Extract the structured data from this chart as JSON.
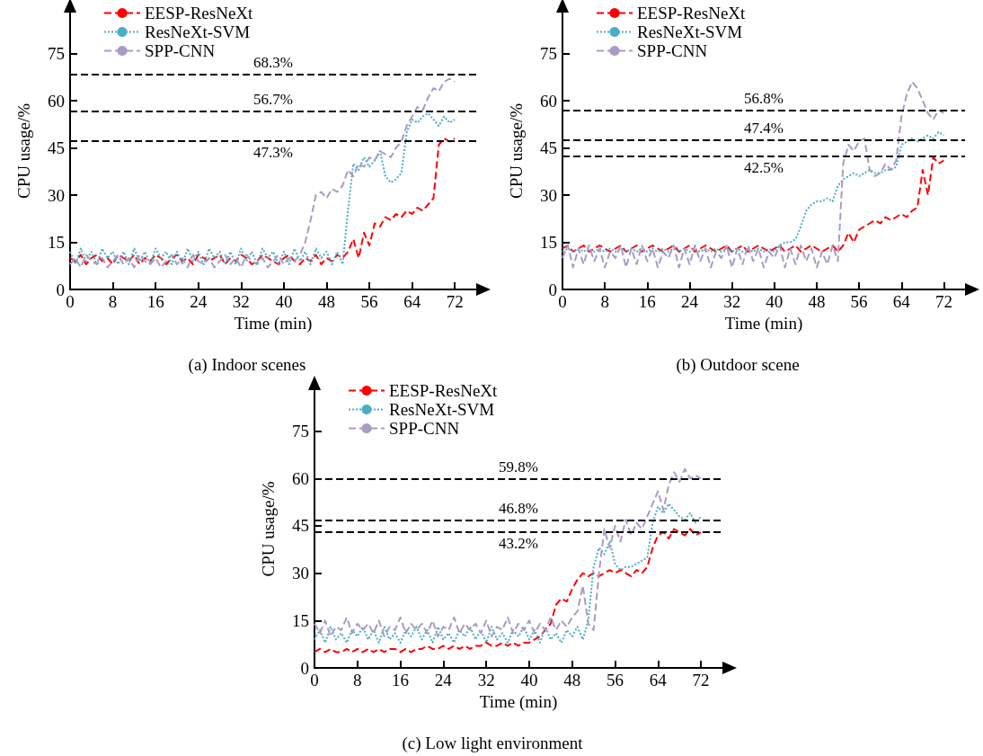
{
  "chart_data": [
    {
      "type": "line",
      "title": "(a) Indoor scenes",
      "x": [
        0,
        1,
        2,
        3,
        4,
        5,
        6,
        7,
        8,
        9,
        10,
        11,
        12,
        13,
        14,
        15,
        16,
        17,
        18,
        19,
        20,
        21,
        22,
        23,
        24,
        25,
        26,
        27,
        28,
        29,
        30,
        31,
        32,
        33,
        34,
        35,
        36,
        37,
        38,
        39,
        40,
        41,
        42,
        43,
        44,
        45,
        46,
        47,
        48,
        49,
        50,
        51,
        52,
        53,
        54,
        55,
        56,
        57,
        58,
        59,
        60,
        61,
        62,
        63,
        64,
        65,
        66,
        67,
        68,
        69,
        70,
        71,
        72
      ],
      "xlabel": "Time (min)",
      "ylabel": "CPU usage/%",
      "xlim": [
        0,
        76
      ],
      "ylim": [
        0,
        88
      ],
      "xticks": [
        0,
        8,
        16,
        24,
        32,
        40,
        48,
        56,
        64,
        72
      ],
      "yticks": [
        0,
        15,
        30,
        45,
        60,
        75
      ],
      "grid": false,
      "legend": "top left",
      "marker": "none",
      "series": [
        {
          "name": "EESP-ResNeXt",
          "color": "#ff0000",
          "line_style": "dashed",
          "values": [
            10,
            9,
            11,
            8,
            10,
            11,
            9,
            10,
            8,
            11,
            10,
            9,
            11,
            8,
            10,
            9,
            11,
            10,
            8,
            10,
            11,
            9,
            10,
            8,
            11,
            10,
            9,
            10,
            11,
            8,
            10,
            9,
            11,
            10,
            8,
            9,
            11,
            10,
            9,
            8,
            10,
            11,
            9,
            8,
            10,
            9,
            11,
            8,
            10,
            9,
            11,
            10,
            12,
            16,
            10,
            18,
            14,
            21,
            20,
            23,
            22,
            24,
            23,
            25,
            24,
            26,
            25,
            27,
            29,
            46,
            48,
            47,
            48
          ]
        },
        {
          "name": "ResNeXt-SVM",
          "color": "#4bacc6",
          "line_style": "dotted",
          "values": [
            12,
            8,
            13,
            9,
            12,
            8,
            13,
            10,
            12,
            8,
            12,
            8,
            13,
            9,
            12,
            8,
            13,
            10,
            12,
            8,
            12,
            8,
            13,
            9,
            12,
            8,
            13,
            10,
            12,
            8,
            12,
            8,
            13,
            9,
            12,
            8,
            13,
            10,
            12,
            8,
            12,
            8,
            13,
            9,
            12,
            8,
            13,
            10,
            12,
            8,
            12,
            8,
            25,
            40,
            38,
            42,
            39,
            41,
            44,
            36,
            34,
            35,
            37,
            50,
            54,
            53,
            55,
            56,
            54,
            52,
            55,
            53,
            54
          ]
        },
        {
          "name": "SPP-CNN",
          "color": "#a99bc4",
          "line_style": "dashed",
          "values": [
            8,
            10,
            7,
            11,
            9,
            8,
            10,
            7,
            9,
            11,
            8,
            10,
            7,
            11,
            9,
            8,
            10,
            7,
            9,
            11,
            8,
            10,
            7,
            11,
            9,
            8,
            10,
            7,
            9,
            11,
            8,
            10,
            7,
            11,
            9,
            8,
            10,
            7,
            9,
            11,
            8,
            10,
            9,
            11,
            15,
            22,
            30,
            31,
            29,
            32,
            31,
            33,
            38,
            36,
            40,
            39,
            42,
            41,
            44,
            43,
            42,
            45,
            47,
            52,
            55,
            58,
            57,
            61,
            64,
            63,
            66,
            67,
            66
          ]
        }
      ],
      "ref_lines": [
        {
          "axis": "y",
          "value": 68.3,
          "label": "68.3%"
        },
        {
          "axis": "y",
          "value": 56.7,
          "label": "56.7%"
        },
        {
          "axis": "y",
          "value": 47.3,
          "label": "47.3%"
        }
      ]
    },
    {
      "type": "line",
      "title": "(b) Outdoor scene",
      "x": [
        0,
        1,
        2,
        3,
        4,
        5,
        6,
        7,
        8,
        9,
        10,
        11,
        12,
        13,
        14,
        15,
        16,
        17,
        18,
        19,
        20,
        21,
        22,
        23,
        24,
        25,
        26,
        27,
        28,
        29,
        30,
        31,
        32,
        33,
        34,
        35,
        36,
        37,
        38,
        39,
        40,
        41,
        42,
        43,
        44,
        45,
        46,
        47,
        48,
        49,
        50,
        51,
        52,
        53,
        54,
        55,
        56,
        57,
        58,
        59,
        60,
        61,
        62,
        63,
        64,
        65,
        66,
        67,
        68,
        69,
        70,
        71,
        72
      ],
      "xlabel": "Time (min)",
      "ylabel": "CPU usage/%",
      "xlim": [
        0,
        76
      ],
      "ylim": [
        0,
        88
      ],
      "xticks": [
        0,
        8,
        16,
        24,
        32,
        40,
        48,
        56,
        64,
        72
      ],
      "yticks": [
        0,
        15,
        30,
        45,
        60,
        75
      ],
      "grid": false,
      "legend": "top left",
      "marker": "none",
      "series": [
        {
          "name": "EESP-ResNeXt",
          "color": "#ff0000",
          "line_style": "dashed",
          "values": [
            13,
            14,
            12,
            13,
            14,
            12,
            13,
            14,
            13,
            12,
            13,
            14,
            12,
            13,
            14,
            12,
            13,
            14,
            13,
            12,
            13,
            14,
            12,
            13,
            14,
            12,
            13,
            14,
            13,
            12,
            13,
            14,
            12,
            13,
            14,
            12,
            13,
            14,
            13,
            12,
            13,
            14,
            12,
            13,
            14,
            12,
            13,
            14,
            13,
            12,
            13,
            14,
            12,
            14,
            18,
            15,
            19,
            20,
            21,
            22,
            21,
            23,
            22,
            23,
            24,
            23,
            25,
            26,
            38,
            30,
            42,
            40,
            41
          ]
        },
        {
          "name": "ResNeXt-SVM",
          "color": "#4bacc6",
          "line_style": "dotted",
          "values": [
            12,
            13,
            12,
            13,
            12,
            13,
            12,
            13,
            12,
            13,
            12,
            13,
            12,
            13,
            12,
            13,
            12,
            13,
            12,
            13,
            12,
            13,
            12,
            13,
            12,
            13,
            12,
            13,
            12,
            13,
            12,
            13,
            12,
            13,
            12,
            13,
            12,
            13,
            12,
            13,
            12,
            14,
            15,
            15,
            16,
            20,
            25,
            27,
            28,
            28,
            29,
            28,
            33,
            35,
            36,
            37,
            36,
            37,
            38,
            37,
            37,
            38,
            38,
            39,
            46,
            47,
            48,
            47,
            48,
            49,
            48,
            50,
            49
          ]
        },
        {
          "name": "SPP-CNN",
          "color": "#a99bc4",
          "line_style": "dashed",
          "values": [
            10,
            14,
            7,
            13,
            8,
            14,
            9,
            13,
            7,
            12,
            10,
            14,
            7,
            13,
            8,
            14,
            9,
            13,
            7,
            12,
            10,
            14,
            7,
            13,
            8,
            14,
            9,
            13,
            7,
            12,
            10,
            14,
            7,
            13,
            8,
            14,
            9,
            13,
            7,
            12,
            10,
            14,
            7,
            13,
            8,
            14,
            9,
            13,
            7,
            12,
            8,
            14,
            9,
            40,
            46,
            44,
            47,
            48,
            38,
            36,
            37,
            40,
            38,
            41,
            55,
            62,
            66,
            64,
            60,
            56,
            54,
            57,
            56
          ]
        }
      ],
      "ref_lines": [
        {
          "axis": "y",
          "value": 56.8,
          "label": "56.8%"
        },
        {
          "axis": "y",
          "value": 47.4,
          "label": "47.4%"
        },
        {
          "axis": "y",
          "value": 42.5,
          "label": "42.5%"
        }
      ]
    },
    {
      "type": "line",
      "title": "(c) Low light environment",
      "x": [
        0,
        1,
        2,
        3,
        4,
        5,
        6,
        7,
        8,
        9,
        10,
        11,
        12,
        13,
        14,
        15,
        16,
        17,
        18,
        19,
        20,
        21,
        22,
        23,
        24,
        25,
        26,
        27,
        28,
        29,
        30,
        31,
        32,
        33,
        34,
        35,
        36,
        37,
        38,
        39,
        40,
        41,
        42,
        43,
        44,
        45,
        46,
        47,
        48,
        49,
        50,
        51,
        52,
        53,
        54,
        55,
        56,
        57,
        58,
        59,
        60,
        61,
        62,
        63,
        64,
        65,
        66,
        67,
        68,
        69,
        70,
        71,
        72
      ],
      "xlabel": "Time (min)",
      "ylabel": "CPU usage/%",
      "xlim": [
        0,
        76
      ],
      "ylim": [
        0,
        88
      ],
      "xticks": [
        0,
        8,
        16,
        24,
        32,
        40,
        48,
        56,
        64,
        72
      ],
      "yticks": [
        0,
        15,
        30,
        45,
        60,
        75
      ],
      "grid": false,
      "legend": "top left",
      "marker": "none",
      "series": [
        {
          "name": "EESP-ResNeXt",
          "color": "#ff0000",
          "line_style": "dashed",
          "values": [
            5,
            6,
            5,
            6,
            5,
            5,
            6,
            5,
            6,
            5,
            6,
            5,
            6,
            5,
            6,
            6,
            5,
            6,
            5,
            6,
            6,
            7,
            6,
            6,
            7,
            6,
            7,
            6,
            7,
            6,
            7,
            7,
            8,
            7,
            7,
            8,
            7,
            8,
            7,
            8,
            8,
            9,
            10,
            12,
            14,
            20,
            22,
            21,
            25,
            28,
            30,
            29,
            30,
            29,
            30,
            31,
            30,
            31,
            30,
            29,
            31,
            30,
            32,
            38,
            42,
            43,
            41,
            44,
            43,
            42,
            44,
            42,
            43
          ]
        },
        {
          "name": "ResNeXt-SVM",
          "color": "#4bacc6",
          "line_style": "dotted",
          "values": [
            9,
            12,
            8,
            13,
            9,
            11,
            8,
            12,
            10,
            13,
            9,
            12,
            8,
            13,
            9,
            11,
            8,
            12,
            10,
            13,
            9,
            12,
            8,
            13,
            9,
            11,
            8,
            12,
            10,
            13,
            9,
            12,
            8,
            13,
            9,
            11,
            8,
            12,
            10,
            13,
            9,
            12,
            8,
            13,
            9,
            11,
            8,
            12,
            10,
            13,
            9,
            15,
            32,
            38,
            36,
            40,
            33,
            31,
            32,
            32,
            33,
            34,
            35,
            46,
            51,
            49,
            52,
            50,
            48,
            47,
            49,
            46,
            48
          ]
        },
        {
          "name": "SPP-CNN",
          "color": "#a99bc4",
          "line_style": "dashed",
          "values": [
            14,
            11,
            15,
            10,
            13,
            12,
            16,
            11,
            14,
            12,
            14,
            11,
            15,
            10,
            13,
            12,
            16,
            11,
            14,
            12,
            14,
            11,
            15,
            10,
            13,
            12,
            16,
            11,
            14,
            12,
            14,
            11,
            15,
            10,
            13,
            12,
            16,
            11,
            14,
            12,
            15,
            11,
            14,
            12,
            16,
            12,
            15,
            13,
            16,
            18,
            26,
            14,
            12,
            30,
            44,
            38,
            45,
            40,
            47,
            42,
            46,
            44,
            48,
            52,
            56,
            50,
            58,
            62,
            59,
            63,
            60,
            61,
            60
          ]
        }
      ],
      "ref_lines": [
        {
          "axis": "y",
          "value": 59.8,
          "label": "59.8%"
        },
        {
          "axis": "y",
          "value": 46.8,
          "label": "46.8%"
        },
        {
          "axis": "y",
          "value": 43.2,
          "label": "43.2%"
        }
      ]
    }
  ]
}
